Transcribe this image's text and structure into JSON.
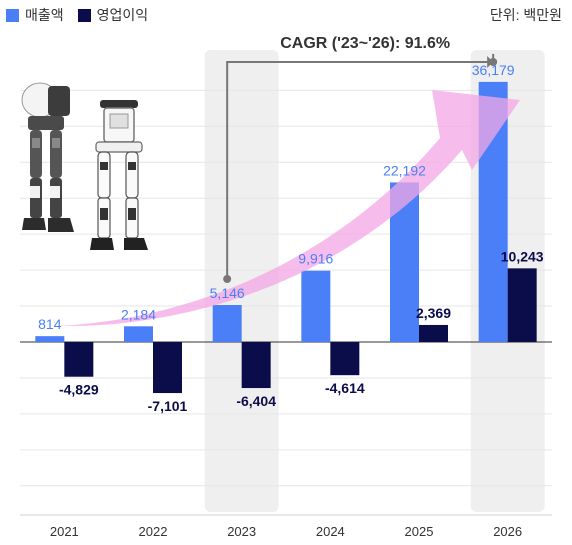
{
  "legend": {
    "revenue": "매출액",
    "operating_income": "영업이익"
  },
  "unit_label": "단위: 백만원",
  "cagr_label": "CAGR ('23~'26): 91.6%",
  "colors": {
    "revenue": "#4a7ff7",
    "operating_income": "#0b0c4a",
    "highlight": "#efefef",
    "arrow": "#f3a7e6",
    "cagr_line": "#777777"
  },
  "icons": [
    "robot-exoskeleton-dark-image",
    "robot-exoskeleton-white-image"
  ],
  "chart_data": {
    "type": "bar",
    "categories": [
      "2021",
      "2022",
      "2023",
      "2024",
      "2025",
      "2026"
    ],
    "series": [
      {
        "name": "매출액",
        "values": [
          814,
          2184,
          5146,
          9916,
          22192,
          36179
        ],
        "labels": [
          "814",
          "2,184",
          "5,146",
          "9,916",
          "22,192",
          "36,179"
        ]
      },
      {
        "name": "영업이익",
        "values": [
          -4829,
          -7101,
          -6404,
          -4614,
          2369,
          10243
        ],
        "labels": [
          "-4,829",
          "-7,101",
          "-6,404",
          "-4,614",
          "2,369",
          "10,243"
        ]
      }
    ],
    "highlighted_categories": [
      "2023",
      "2026"
    ],
    "annotation": "CAGR ('23~'26): 91.6%",
    "grid": true,
    "legend_position": "top-left"
  }
}
